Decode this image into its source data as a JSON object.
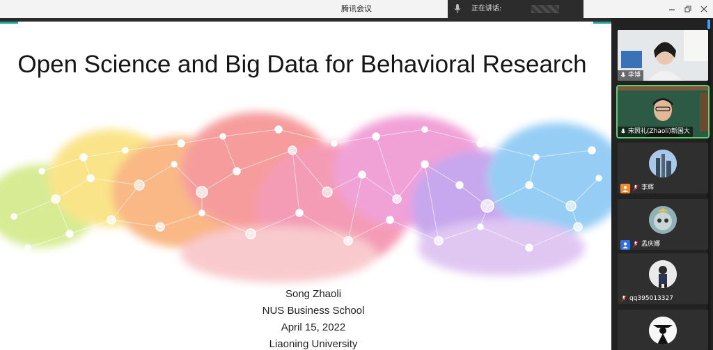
{
  "window": {
    "title": "腾讯会议"
  },
  "speaking": {
    "label": "正在讲话:"
  },
  "slide": {
    "title": "Open Science and Big Data for Behavioral Research",
    "info_lines": [
      "Song Zhaoli",
      "NUS Business School",
      "April 15, 2022",
      "Liaoning University"
    ]
  },
  "participants": [
    {
      "name": "李博",
      "type": "video",
      "muted": false
    },
    {
      "name": "宋照礼(Zhaoli)新国大",
      "type": "video",
      "muted": false,
      "active": true
    },
    {
      "name": "李辉",
      "type": "avatar",
      "muted": true,
      "role_color": "#f28c28"
    },
    {
      "name": "孟庆娜",
      "type": "avatar",
      "muted": true,
      "role_color": "#2f6fe4"
    },
    {
      "name": "qq395013327",
      "type": "avatar",
      "muted": true
    },
    {
      "name": "",
      "type": "avatar",
      "muted": true
    }
  ],
  "icons": {
    "mic": "mic-icon",
    "mic_muted": "mic-muted-icon",
    "minimize": "minimize-icon",
    "restore": "restore-icon",
    "close": "close-icon"
  },
  "colors": {
    "accent": "#1fa3a0",
    "speaking_border": "#5ad26e",
    "scroll": "#3ba0ff"
  }
}
